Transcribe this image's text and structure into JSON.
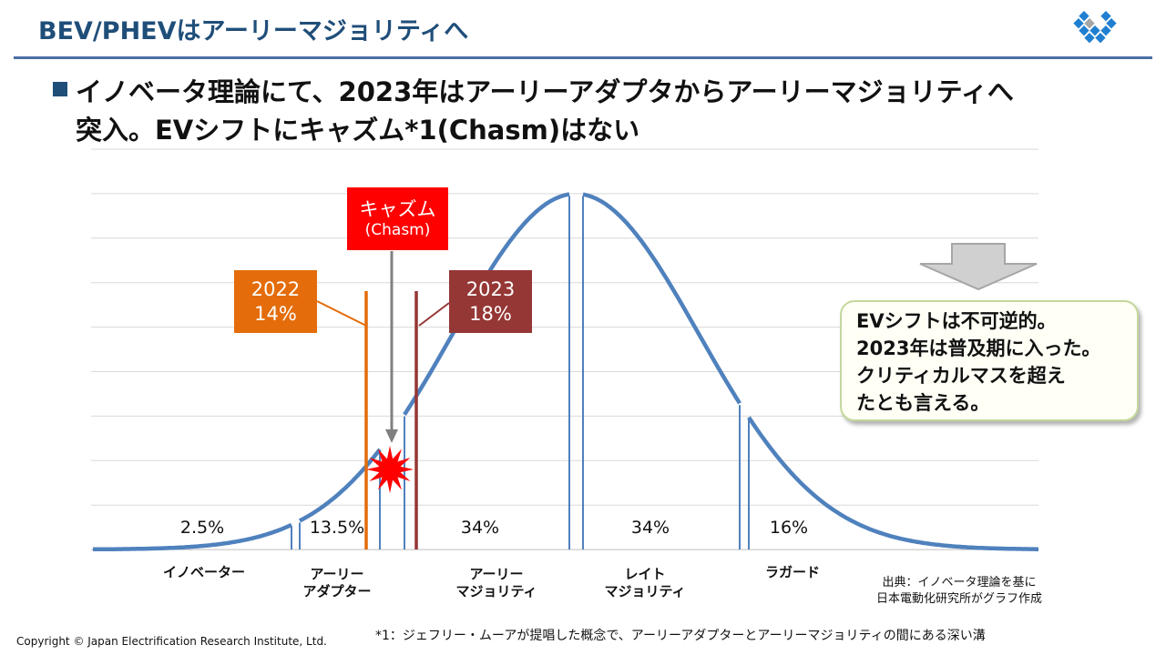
{
  "header": {
    "title": "BEV/PHEVはアーリーマジョリティへ",
    "logo_icon": "diamond-grid-logo-icon"
  },
  "headline": {
    "line1": "イノベータ理論にて、2023年はアーリーアダプタからアーリーマジョリティへ",
    "line2": "突入。EVシフトにキャズム*1(Chasm)はない"
  },
  "chasm_box": {
    "line1": "キャズム",
    "line2": "(Chasm)",
    "color": "#ff0000"
  },
  "marker_2022": {
    "year": "2022",
    "share": "14%",
    "color": "#e46c0a"
  },
  "marker_2023": {
    "year": "2023",
    "share": "18%",
    "color": "#953735"
  },
  "segments": [
    {
      "percent": "2.5%",
      "label_lines": [
        "イノベーター"
      ]
    },
    {
      "percent": "13.5%",
      "label_lines": [
        "アーリー",
        "アダプター"
      ]
    },
    {
      "percent": "34%",
      "label_lines": [
        "アーリー",
        "マジョリティ"
      ]
    },
    {
      "percent": "34%",
      "label_lines": [
        "レイト",
        "マジョリティ"
      ]
    },
    {
      "percent": "16%",
      "label_lines": [
        "ラガード"
      ]
    }
  ],
  "callout": {
    "lines": [
      "EVシフトは不可逆的。",
      "2023年は普及期に入った。",
      "クリティカルマスを超え",
      "たとも言える。"
    ]
  },
  "source": {
    "line1": "出典：イノベータ理論を基に",
    "line2": "日本電動化研究所がグラフ作成"
  },
  "copyright": "Copyright © Japan Electrification Research Institute, Ltd.",
  "footnote": "*1：ジェフリー・ムーアが提唱した概念で、アーリーアダプターとアーリーマジョリティの間にある深い溝",
  "colors": {
    "title": "#1f4e79",
    "curve": "#4f81bd"
  }
}
